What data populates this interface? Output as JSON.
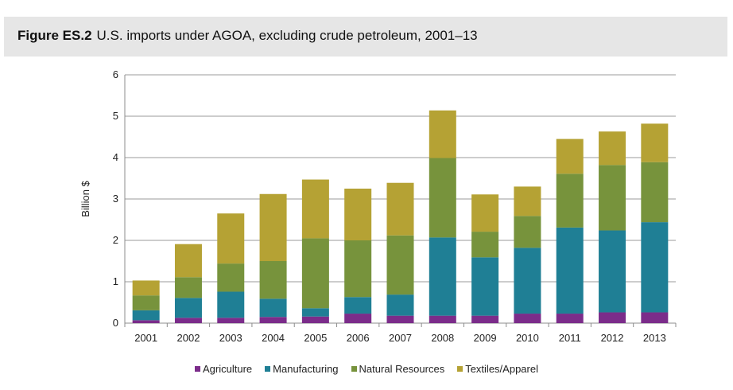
{
  "figure": {
    "label": "Figure ES.2",
    "title": "U.S. imports under AGOA, excluding crude petroleum, 2001–13"
  },
  "chart_data": {
    "type": "bar",
    "stacked": true,
    "title": "U.S. imports under AGOA, excluding crude petroleum, 2001–13",
    "xlabel": "",
    "ylabel": "Billion $",
    "ylim": [
      0,
      6
    ],
    "yticks": [
      "0",
      "1",
      "2",
      "3",
      "4",
      "5",
      "6"
    ],
    "grid": true,
    "legend_position": "bottom",
    "categories": [
      "2001",
      "2002",
      "2003",
      "2004",
      "2005",
      "2006",
      "2007",
      "2008",
      "2009",
      "2010",
      "2011",
      "2012",
      "2013"
    ],
    "series": [
      {
        "name": "Agriculture",
        "color": "#7b2c8a",
        "values": [
          0.07,
          0.13,
          0.13,
          0.15,
          0.16,
          0.23,
          0.18,
          0.18,
          0.18,
          0.23,
          0.23,
          0.26,
          0.26
        ]
      },
      {
        "name": "Manufacturing",
        "color": "#1f7f95",
        "values": [
          0.24,
          0.48,
          0.63,
          0.44,
          0.2,
          0.4,
          0.51,
          1.89,
          1.41,
          1.59,
          2.08,
          1.98,
          2.18
        ]
      },
      {
        "name": "Natural Resources",
        "color": "#77933c",
        "values": [
          0.36,
          0.5,
          0.68,
          0.91,
          1.69,
          1.37,
          1.43,
          1.92,
          0.62,
          0.77,
          1.3,
          1.58,
          1.45
        ]
      },
      {
        "name": "Textiles/Apparel",
        "color": "#b5a234",
        "values": [
          0.36,
          0.8,
          1.21,
          1.62,
          1.42,
          1.25,
          1.27,
          1.15,
          0.9,
          0.71,
          0.84,
          0.81,
          0.93
        ]
      }
    ]
  }
}
